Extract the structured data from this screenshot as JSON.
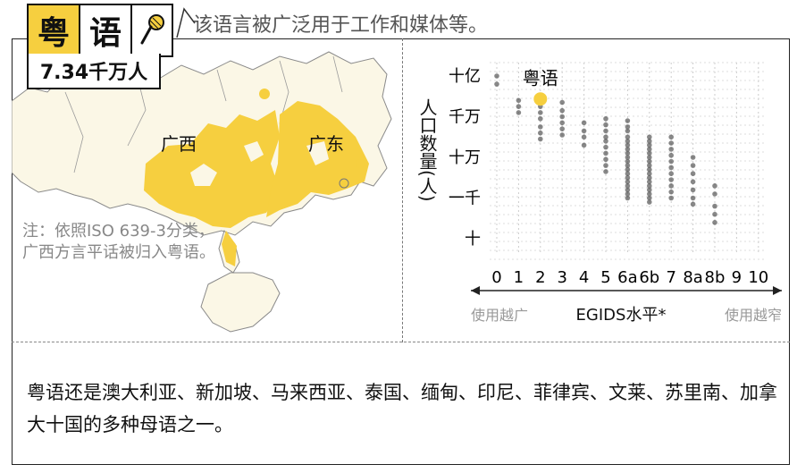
{
  "header": {
    "title_chars": [
      "粤",
      "语"
    ],
    "speaker_count": "7.34千万人",
    "subtitle": "该语言被广泛用于工作和媒体等。",
    "icon": "microphone-icon"
  },
  "map": {
    "regions": [
      "广西",
      "广东"
    ],
    "note": "注：依照ISO 639-3分类，广西方言平话被归入粤语。",
    "colors": {
      "highlight": "#f6cf3f",
      "land": "#fbf7e6",
      "border": "#777777"
    }
  },
  "chart_data": {
    "type": "scatter",
    "ylabel": "人口数量(人)",
    "xlabel": "EGIDS水平*",
    "x_left_note": "使用越广",
    "x_right_note": "使用越窄",
    "x_ticks": [
      "0",
      "1",
      "2",
      "3",
      "4",
      "5",
      "6a",
      "6b",
      "7",
      "8a",
      "8b",
      "9",
      "10"
    ],
    "y_ticks": [
      "十亿",
      "千万",
      "十万",
      "一千",
      "十"
    ],
    "highlight": {
      "label": "粤语",
      "x": "2",
      "y_log": 7.87
    },
    "points": [
      {
        "x": "0",
        "y": [
          9.0,
          8.6
        ]
      },
      {
        "x": "1",
        "y": [
          7.8,
          7.5,
          7.2
        ]
      },
      {
        "x": "2",
        "y": [
          7.5,
          7.2,
          6.9,
          6.5,
          6.2,
          5.9
        ]
      },
      {
        "x": "3",
        "y": [
          7.7,
          7.3,
          7.0,
          6.7,
          6.4,
          6.1
        ]
      },
      {
        "x": "4",
        "y": [
          6.7,
          6.3,
          6.0,
          5.6
        ]
      },
      {
        "x": "5",
        "y": [
          6.9,
          6.6,
          6.3,
          6.0,
          5.8,
          5.5,
          5.2,
          4.9,
          4.6,
          4.3
        ]
      },
      {
        "x": "6a",
        "y": [
          6.8,
          6.5,
          6.3,
          6.0,
          5.8,
          5.6,
          5.4,
          5.2,
          5.0,
          4.8,
          4.6,
          4.4,
          4.2,
          4.0,
          3.8,
          3.6,
          3.4,
          3.2,
          3.0
        ]
      },
      {
        "x": "6b",
        "y": [
          6.0,
          5.8,
          5.6,
          5.4,
          5.2,
          5.0,
          4.8,
          4.6,
          4.4,
          4.2,
          4.0,
          3.8,
          3.6,
          3.4,
          3.2,
          3.0,
          2.8
        ]
      },
      {
        "x": "7",
        "y": [
          6.0,
          5.7,
          5.4,
          5.1,
          4.8,
          4.5,
          4.2,
          3.9,
          3.6,
          3.3,
          3.0
        ]
      },
      {
        "x": "8a",
        "y": [
          5.0,
          4.6,
          4.2,
          3.8,
          3.4,
          3.0,
          2.7
        ]
      },
      {
        "x": "8b",
        "y": [
          3.6,
          3.2,
          2.6,
          2.2,
          1.8
        ]
      }
    ]
  },
  "body": {
    "text": "粤语还是澳大利亚、新加坡、马来西亚、泰国、缅甸、印尼、菲律宾、文莱、苏里南、加拿大十国的多种母语之一。"
  }
}
